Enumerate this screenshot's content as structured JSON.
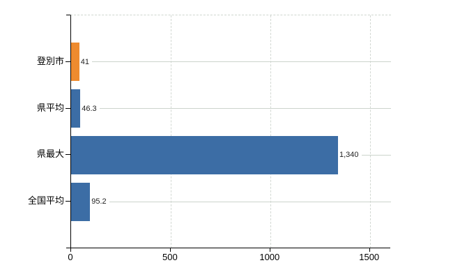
{
  "chart_data": {
    "type": "bar",
    "orientation": "horizontal",
    "title": "",
    "xlabel": "",
    "ylabel": "",
    "categories": [
      "登別市",
      "県平均",
      "県最大",
      "全国平均"
    ],
    "values": [
      41,
      46.3,
      1340,
      95.2
    ],
    "value_labels": [
      "41",
      "46.3",
      "1,340",
      "95.2"
    ],
    "series": [
      {
        "name": "value",
        "values": [
          41,
          46.3,
          1340,
          95.2
        ]
      }
    ],
    "bar_colors": [
      "#ee8b2f",
      "#3c6da5",
      "#3c6da5",
      "#3c6da5"
    ],
    "x_ticks": [
      0,
      500,
      1000,
      1500
    ],
    "x_tick_labels": [
      "0",
      "500",
      "1000",
      "1500"
    ],
    "xlim": [
      0,
      1606
    ],
    "grid": "vertical-dashed-plus-row-lines",
    "legend": "none"
  },
  "colors": {
    "bar_blue": "#3c6da5",
    "bar_orange": "#ee8b2f",
    "grid_dashed": "#d2d8d2",
    "row_line": "#ccd4cc",
    "axis": "#000000",
    "value_text": "#222222",
    "label_text": "#000000",
    "background": "#ffffff"
  }
}
